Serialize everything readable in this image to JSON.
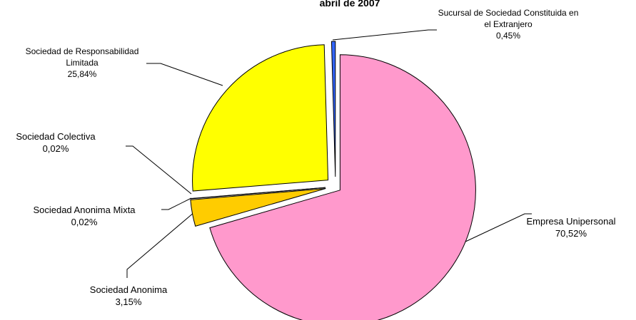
{
  "chart_data": {
    "type": "pie",
    "title": "abril de 2007",
    "categories": [
      "Empresa Unipersonal",
      "Sociedad Anonima",
      "Sociedad Anonima Mixta",
      "Sociedad Colectiva",
      "Sociedad de Responsabilidad Limitada",
      "Sucursal de Sociedad Constituida en el Extranjero"
    ],
    "values": [
      70.52,
      3.15,
      0.02,
      0.02,
      25.84,
      0.45
    ],
    "value_labels": [
      "70,52%",
      "3,15%",
      "0,02%",
      "0,02%",
      "25,84%",
      "0,45%"
    ],
    "colors": [
      "#ff99cc",
      "#ffcc00",
      "#993366",
      "#ccffcc",
      "#ffff00",
      "#3366ff"
    ]
  }
}
